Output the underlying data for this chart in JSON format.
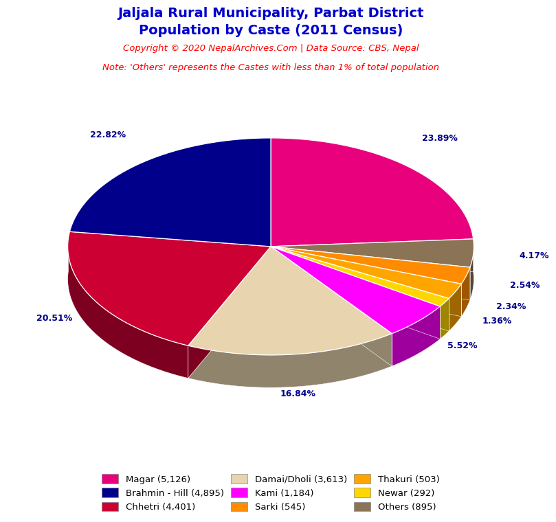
{
  "title_line1": "Jaljala Rural Municipality, Parbat District",
  "title_line2": "Population by Caste (2011 Census)",
  "title_color": "#0000CC",
  "copyright_text": "Copyright © 2020 NepalArchives.Com | Data Source: CBS, Nepal",
  "copyright_color": "#FF0000",
  "note_text": "Note: 'Others' represents the Castes with less than 1% of total population",
  "note_color": "#FF0000",
  "reordered_values": [
    5126,
    895,
    545,
    503,
    292,
    1184,
    3613,
    4401,
    4895
  ],
  "reordered_colors": [
    "#E8007D",
    "#8B7355",
    "#FF8C00",
    "#FFA500",
    "#FFD700",
    "#FF00FF",
    "#E8D5B0",
    "#CC0033",
    "#00008B"
  ],
  "reordered_pcts": [
    23.89,
    4.17,
    2.54,
    2.34,
    1.36,
    5.52,
    16.84,
    20.51,
    22.82
  ],
  "pct_label_color": "#00008B",
  "background_color": "#FFFFFF",
  "legend_order": [
    [
      "Magar (5,126)",
      "#E8007D"
    ],
    [
      "Brahmin - Hill (4,895)",
      "#00008B"
    ],
    [
      "Chhetri (4,401)",
      "#CC0033"
    ],
    [
      "Damai/Dholi (3,613)",
      "#E8D5B0"
    ],
    [
      "Kami (1,184)",
      "#FF00FF"
    ],
    [
      "Sarki (545)",
      "#FF8C00"
    ],
    [
      "Thakuri (503)",
      "#FFA500"
    ],
    [
      "Newar (292)",
      "#FFD700"
    ],
    [
      "Others (895)",
      "#8B7355"
    ]
  ]
}
